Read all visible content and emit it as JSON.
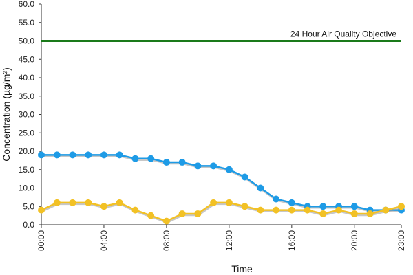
{
  "chart_data": {
    "type": "line",
    "xlabel": "Time",
    "ylabel": "Concentration (µg/m³)",
    "x": [
      "00:00",
      "01:00",
      "02:00",
      "03:00",
      "04:00",
      "05:00",
      "06:00",
      "07:00",
      "08:00",
      "09:00",
      "10:00",
      "11:00",
      "12:00",
      "13:00",
      "14:00",
      "15:00",
      "16:00",
      "17:00",
      "18:00",
      "19:00",
      "20:00",
      "21:00",
      "22:00",
      "23:00"
    ],
    "x_tick_labels": [
      "00:00",
      "04:00",
      "08:00",
      "12:00",
      "16:00",
      "20:00",
      "23:00"
    ],
    "ylim": [
      0,
      60
    ],
    "y_tick_labels": [
      "0.0",
      "5.0",
      "10.0",
      "15.0",
      "20.0",
      "25.0",
      "30.0",
      "35.0",
      "40.0",
      "45.0",
      "50.0",
      "55.0",
      "60.0"
    ],
    "grid": false,
    "series": [
      {
        "color": "#1e9be6",
        "values": [
          19,
          19,
          19,
          19,
          19,
          19,
          18,
          18,
          17,
          17,
          16,
          16,
          15,
          13,
          10,
          7,
          6,
          5,
          5,
          5,
          5,
          4,
          4,
          4
        ]
      },
      {
        "color": "#f2c125",
        "values": [
          4,
          6,
          6,
          6,
          5,
          6,
          4,
          2.5,
          1,
          3,
          3,
          6,
          6,
          5,
          4,
          4,
          4,
          4,
          3,
          4,
          3,
          3,
          4,
          5
        ]
      }
    ],
    "reference_line": {
      "value": 50,
      "label": "24 Hour Air Quality Objective",
      "color": "#1a7a1a"
    }
  }
}
